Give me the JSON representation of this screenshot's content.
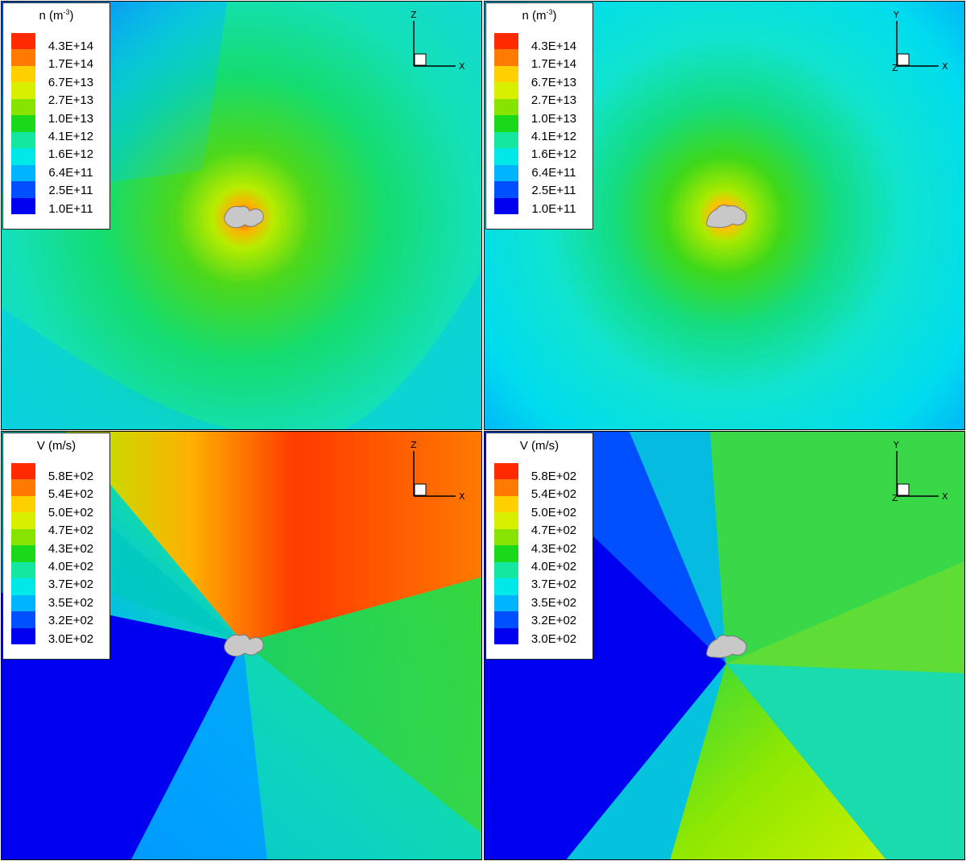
{
  "panels": [
    {
      "id": "density-xz",
      "legend_title": "n (m",
      "legend_title_sup": "-3",
      "legend_title_tail": ")",
      "legend_labels": [
        "4.3E+14",
        "1.7E+14",
        "6.7E+13",
        "2.7E+13",
        "1.0E+13",
        "4.1E+12",
        "1.6E+12",
        "6.4E+11",
        "2.5E+11",
        "1.0E+11"
      ],
      "axis_vertical": "Z",
      "axis_horizontal": "X",
      "axis_depth": ""
    },
    {
      "id": "density-xy",
      "legend_title": "n (m",
      "legend_title_sup": "-3",
      "legend_title_tail": ")",
      "legend_labels": [
        "4.3E+14",
        "1.7E+14",
        "6.7E+13",
        "2.7E+13",
        "1.0E+13",
        "4.1E+12",
        "1.6E+12",
        "6.4E+11",
        "2.5E+11",
        "1.0E+11"
      ],
      "axis_vertical": "Y",
      "axis_horizontal": "X",
      "axis_depth": "Z"
    },
    {
      "id": "velocity-xz",
      "legend_title": "V (m/s)",
      "legend_title_sup": "",
      "legend_title_tail": "",
      "legend_labels": [
        "5.8E+02",
        "5.4E+02",
        "5.0E+02",
        "4.7E+02",
        "4.3E+02",
        "4.0E+02",
        "3.7E+02",
        "3.5E+02",
        "3.2E+02",
        "3.0E+02"
      ],
      "axis_vertical": "Z",
      "axis_horizontal": "X",
      "axis_depth": ""
    },
    {
      "id": "velocity-xy",
      "legend_title": "V (m/s)",
      "legend_title_sup": "",
      "legend_title_tail": "",
      "legend_labels": [
        "5.8E+02",
        "5.4E+02",
        "5.0E+02",
        "4.7E+02",
        "4.3E+02",
        "4.0E+02",
        "3.7E+02",
        "3.5E+02",
        "3.2E+02",
        "3.0E+02"
      ],
      "axis_vertical": "Y",
      "axis_horizontal": "X",
      "axis_depth": "Z"
    }
  ],
  "colormap": [
    "#ff2a00",
    "#ff7a00",
    "#ffd000",
    "#d8f000",
    "#86e400",
    "#1ad81a",
    "#14e8a0",
    "#00e8e8",
    "#00b4ff",
    "#0050ff",
    "#0000f0"
  ],
  "chart_data": [
    {
      "type": "heatmap",
      "title": "n (m-3)",
      "colorbar_levels": [
        430000000000000.0,
        170000000000000.0,
        67000000000000.0,
        27000000000000.0,
        10000000000000.0,
        4100000000000.0,
        1600000000000.0,
        640000000000.0,
        250000000000.0,
        100000000000.0
      ],
      "colorbar_scale": "log",
      "plane": "X-Z",
      "xlabel": "X",
      "ylabel": "Z"
    },
    {
      "type": "heatmap",
      "title": "n (m-3)",
      "colorbar_levels": [
        430000000000000.0,
        170000000000000.0,
        67000000000000.0,
        27000000000000.0,
        10000000000000.0,
        4100000000000.0,
        1600000000000.0,
        640000000000.0,
        250000000000.0,
        100000000000.0
      ],
      "colorbar_scale": "log",
      "plane": "X-Y",
      "xlabel": "X",
      "ylabel": "Y"
    },
    {
      "type": "heatmap",
      "title": "V (m/s)",
      "colorbar_levels": [
        580,
        540,
        500,
        470,
        430,
        400,
        370,
        350,
        320,
        300
      ],
      "colorbar_scale": "linear",
      "plane": "X-Z",
      "xlabel": "X",
      "ylabel": "Z"
    },
    {
      "type": "heatmap",
      "title": "V (m/s)",
      "colorbar_levels": [
        580,
        540,
        500,
        470,
        430,
        400,
        370,
        350,
        320,
        300
      ],
      "colorbar_scale": "linear",
      "plane": "X-Y",
      "xlabel": "X",
      "ylabel": "Y"
    }
  ]
}
